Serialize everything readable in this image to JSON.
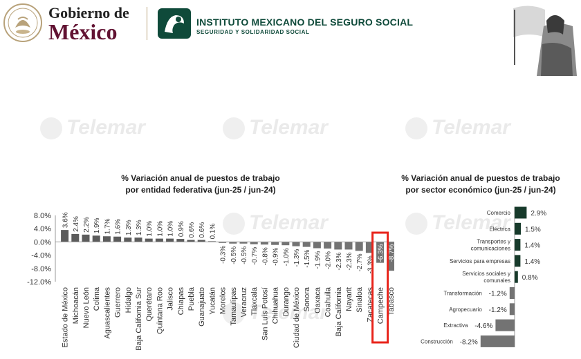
{
  "header": {
    "gob_line1": "Gobierno de",
    "gob_line2": "México",
    "imss_title": "INSTITUTO MEXICANO DEL SEGURO SOCIAL",
    "imss_subtitle": "SEGURIDAD Y SOLIDARIDAD SOCIAL"
  },
  "watermark": "Telemar",
  "colors": {
    "highlight_box": "#e8231a",
    "negative_bar": "#737373",
    "positive_bar_states": "#5c5c5c",
    "positive_bar_sectors": "#173a2b",
    "brand_green": "#0f4a3a",
    "brand_wine": "#611232"
  },
  "chart_data": [
    {
      "type": "bar",
      "title": "% Variación anual de puestos de trabajo por entidad federativa (jun-25 / jun-24)",
      "title_lines": [
        "% Variación anual de puestos de trabajo",
        "por entidad federativa (jun-25 / jun-24)"
      ],
      "categories": [
        "Estado de México",
        "Michoacán",
        "Nuevo León",
        "Colima",
        "Aguascalientes",
        "Guerrero",
        "Hidalgo",
        "Baja California Sur",
        "Querétaro",
        "Quintana Roo",
        "Jalisco",
        "Chiapas",
        "Puebla",
        "Guanajuato",
        "Yucatán",
        "Morelos",
        "Tamaulipas",
        "Veracruz",
        "Tlaxcala",
        "San Luis Potosí",
        "Chihuahua",
        "Durango",
        "Ciudad de México",
        "Sonora",
        "Oaxaca",
        "Coahuila",
        "Baja California",
        "Nayarit",
        "Sinaloa",
        "Zacatecas",
        "Campeche",
        "Tabasco"
      ],
      "values": [
        3.6,
        2.4,
        2.2,
        1.9,
        1.7,
        1.6,
        1.3,
        1.3,
        1.0,
        1.0,
        1.0,
        0.9,
        0.6,
        0.6,
        0.1,
        -0.3,
        -0.5,
        -0.5,
        -0.7,
        -0.8,
        -0.9,
        -1.0,
        -1.3,
        -1.5,
        -1.9,
        -2.0,
        -2.3,
        -2.3,
        -2.7,
        -3.3,
        -6.3,
        -8.7
      ],
      "data_labels": [
        "3.6%",
        "2.4%",
        "2.2%",
        "1.9%",
        "1.7%",
        "1.6%",
        "1.3%",
        "1.3%",
        "1.0%",
        "1.0%",
        "1.0%",
        "0.9%",
        "0.6%",
        "0.6%",
        "0.1%",
        "-0.3%",
        "-0.5%",
        "-0.5%",
        "-0.7%",
        "-0.8%",
        "-0.9%",
        "-1.0%",
        "-1.3%",
        "-1.5%",
        "-1.9%",
        "-2.0%",
        "-2.3%",
        "-2.3%",
        "-2.7%",
        "-3.3%",
        "-6.3%",
        "-8.7%"
      ],
      "ylim": [
        -12,
        8
      ],
      "y_ticks": [
        8,
        4,
        0,
        -4,
        -8,
        -12
      ],
      "y_tick_labels": [
        "8.0%",
        "4.0%",
        "0.0%",
        "-4.0%",
        "-8.0%",
        "-12.0%"
      ],
      "highlight": "Campeche",
      "grid": false
    },
    {
      "type": "bar",
      "orientation": "horizontal",
      "title": "% Variación anual de puestos de trabajo por sector económico (jun-25 / jun-24)",
      "title_lines": [
        "% Variación anual de puestos de trabajo",
        "por sector económico (jun-25 / jun-24)"
      ],
      "categories": [
        "Comercio",
        "Eléctrica",
        "Transportes y comunicaciones",
        "Servicios para empresas",
        "Servicios sociales y comunales",
        "Transformación",
        "Agropecuario",
        "Extractiva",
        "Construcción"
      ],
      "category_lines": [
        [
          "Comercio"
        ],
        [
          "Eléctrica"
        ],
        [
          "Transportes y",
          "comunicaciones"
        ],
        [
          "Servicios para empresas"
        ],
        [
          "Servicios sociales y",
          "comunales"
        ],
        [
          "Transformación"
        ],
        [
          "Agropecuario"
        ],
        [
          "Extractiva"
        ],
        [
          "Construcción"
        ]
      ],
      "values": [
        2.9,
        1.5,
        1.4,
        1.4,
        0.8,
        -1.2,
        -1.2,
        -4.6,
        -8.2
      ],
      "data_labels": [
        "2.9%",
        "1.5%",
        "1.4%",
        "1.4%",
        "0.8%",
        "-1.2%",
        "-1.2%",
        "-4.6%",
        "-8.2%"
      ],
      "grid": false
    }
  ]
}
